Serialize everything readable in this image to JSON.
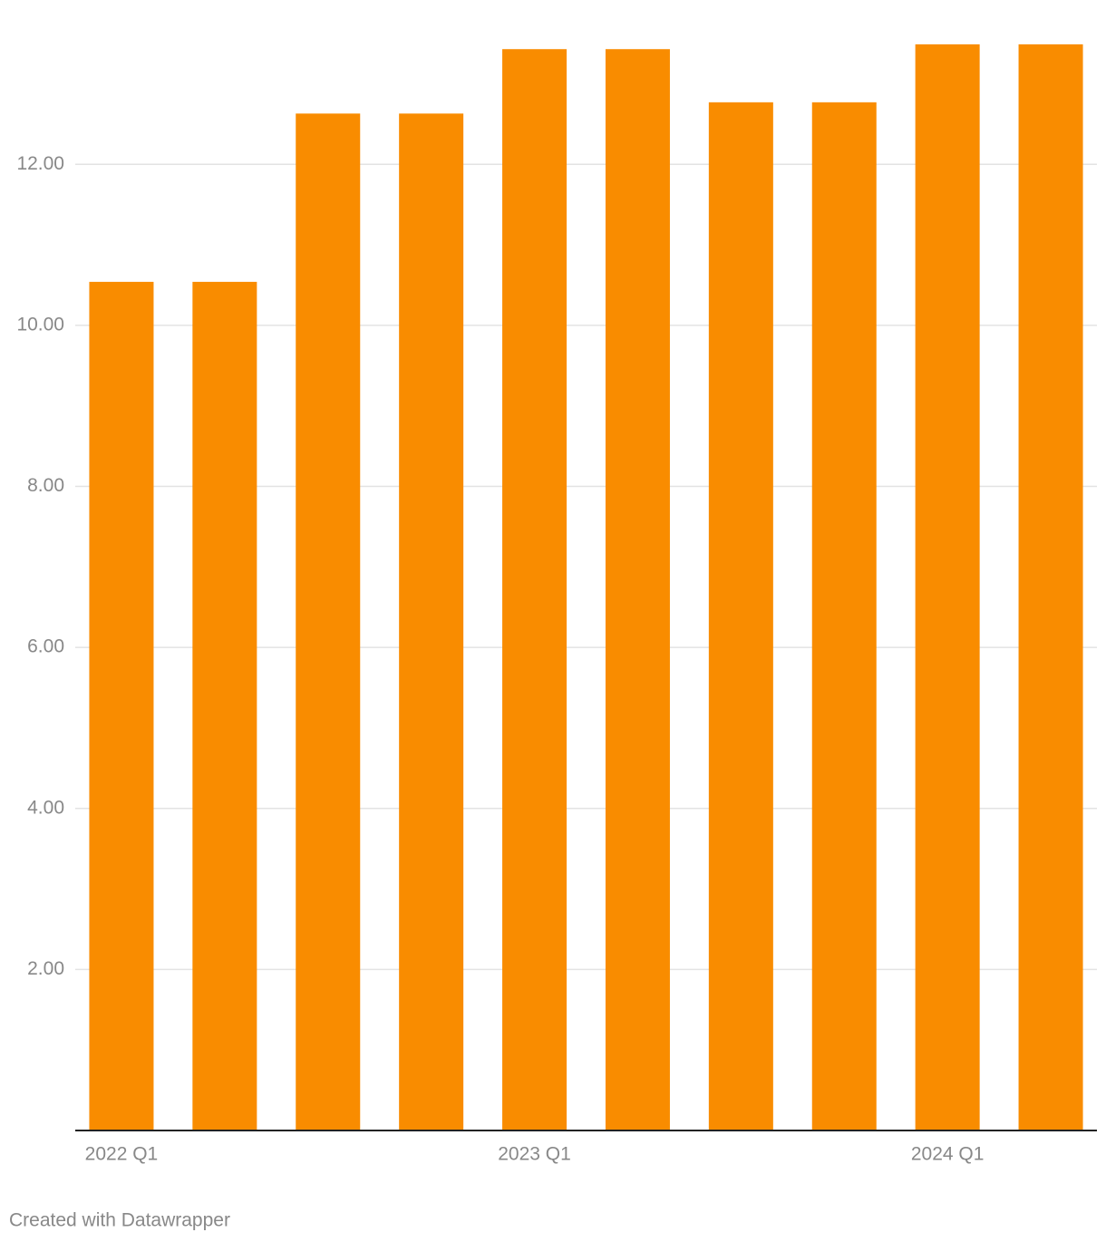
{
  "chart_data": {
    "type": "bar",
    "categories": [
      "2022 Q1",
      null,
      null,
      null,
      "2023 Q1",
      null,
      null,
      null,
      "2024 Q1",
      null
    ],
    "values": [
      10.54,
      10.54,
      12.63,
      12.63,
      13.43,
      13.43,
      12.77,
      12.77,
      13.49,
      13.49
    ],
    "color": "#f98c00",
    "ylim": [
      0,
      13.5
    ],
    "yticks": [
      {
        "value": 2,
        "label": "2.00"
      },
      {
        "value": 4,
        "label": "4.00"
      },
      {
        "value": 6,
        "label": "6.00"
      },
      {
        "value": 8,
        "label": "8.00"
      },
      {
        "value": 10,
        "label": "10.00"
      },
      {
        "value": 12,
        "label": "12.00"
      }
    ],
    "grid": true,
    "footer": "Created with Datawrapper"
  }
}
